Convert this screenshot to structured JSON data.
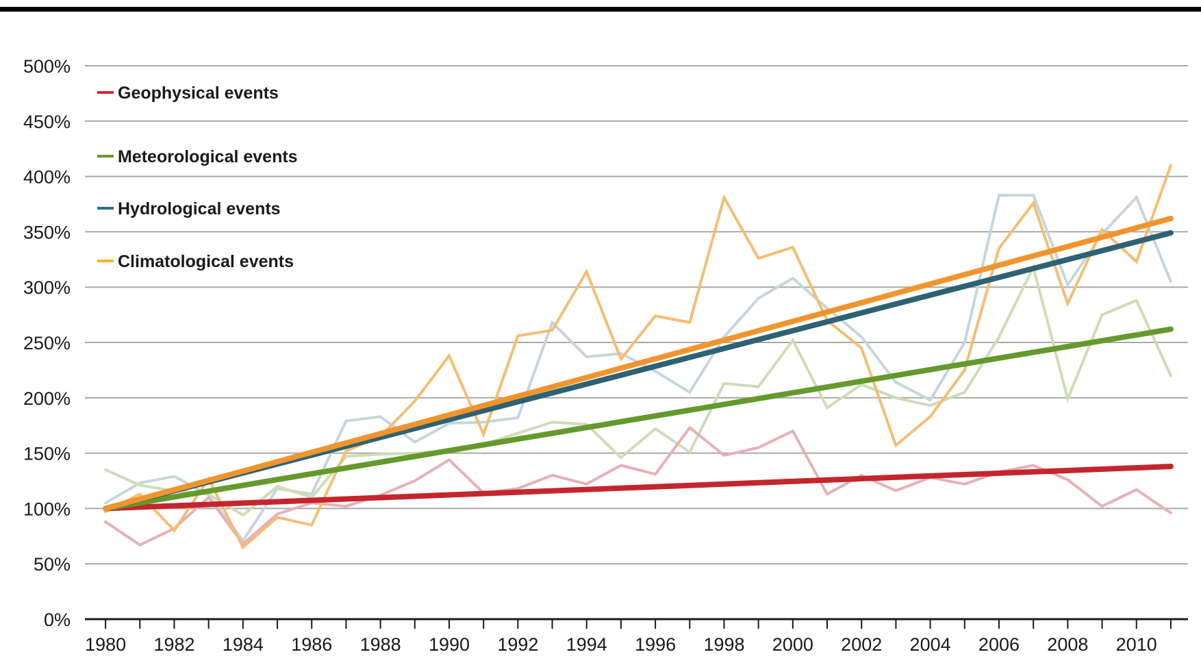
{
  "chart_data": {
    "type": "line",
    "title": "",
    "xlabel": "",
    "ylabel": "",
    "x": [
      1980,
      1981,
      1982,
      1983,
      1984,
      1985,
      1986,
      1987,
      1988,
      1989,
      1990,
      1991,
      1992,
      1993,
      1994,
      1995,
      1996,
      1997,
      1998,
      1999,
      2000,
      2001,
      2002,
      2003,
      2004,
      2005,
      2006,
      2007,
      2008,
      2009,
      2010,
      2011
    ],
    "xticks": [
      1980,
      1982,
      1984,
      1986,
      1988,
      1990,
      1992,
      1994,
      1996,
      1998,
      2000,
      2002,
      2004,
      2006,
      2008,
      2010
    ],
    "xtick_labels": [
      "1980",
      "1982",
      "1984",
      "1986",
      "1988",
      "1990",
      "1992",
      "1994",
      "1996",
      "1998",
      "2000",
      "2002",
      "2004",
      "2006",
      "2008",
      "2010"
    ],
    "yticks": [
      0,
      50,
      100,
      150,
      200,
      250,
      300,
      350,
      400,
      450,
      500
    ],
    "ytick_labels": [
      "0%",
      "50%",
      "100%",
      "150%",
      "200%",
      "250%",
      "300%",
      "350%",
      "400%",
      "450%",
      "500%"
    ],
    "xlim": [
      1979.4,
      2011.5
    ],
    "ylim": [
      0,
      500
    ],
    "grid": "horizontal",
    "legend_position": "top-left",
    "series": [
      {
        "name": "Geophysical events",
        "color": "#c4262e",
        "light_color": "#e7b0b6",
        "values": [
          88,
          67,
          82,
          110,
          68,
          95,
          105,
          102,
          112,
          125,
          144,
          114,
          118,
          130,
          122,
          139,
          131,
          173,
          148,
          155,
          170,
          113,
          130,
          116,
          128,
          122,
          133,
          139,
          126,
          102,
          117,
          96
        ],
        "trend": [
          100,
          138
        ]
      },
      {
        "name": "Meteorological events",
        "color": "#649a2c",
        "light_color": "#cfdcb6",
        "values": [
          135,
          121,
          116,
          113,
          94,
          120,
          110,
          147,
          149,
          150,
          152,
          158,
          168,
          178,
          176,
          146,
          172,
          151,
          213,
          210,
          252,
          191,
          212,
          200,
          193,
          205,
          255,
          318,
          199,
          275,
          288,
          220
        ],
        "trend": [
          100,
          262
        ]
      },
      {
        "name": "Hydrological events",
        "color": "#2e6273",
        "light_color": "#c5d6dd",
        "values": [
          105,
          123,
          129,
          112,
          71,
          118,
          113,
          179,
          183,
          160,
          177,
          178,
          182,
          268,
          237,
          240,
          224,
          205,
          255,
          290,
          308,
          281,
          255,
          214,
          198,
          250,
          383,
          383,
          302,
          348,
          381,
          305
        ],
        "trend": [
          100,
          349
        ]
      },
      {
        "name": "Climatological events",
        "color": "#f0952d",
        "light_color": "#f5bd72",
        "values": [
          97,
          113,
          80,
          127,
          65,
          92,
          85,
          152,
          165,
          197,
          238,
          167,
          256,
          261,
          314,
          235,
          274,
          268,
          381,
          326,
          336,
          270,
          245,
          157,
          183,
          225,
          335,
          376,
          285,
          352,
          323,
          410
        ],
        "trend": [
          100,
          362
        ]
      }
    ]
  },
  "legend": {
    "items": [
      {
        "label": "Geophysical events",
        "color": "#d12a2a"
      },
      {
        "label": "Meteorological events",
        "color": "#6a9a2c"
      },
      {
        "label": "Hydrological events",
        "color": "#2e6a92"
      },
      {
        "label": "Climatological events",
        "color": "#f5b41f"
      }
    ]
  },
  "colors": {
    "top_rule": "#000000",
    "grid": "#a8a8a8",
    "axis": "#1a1a1a"
  }
}
